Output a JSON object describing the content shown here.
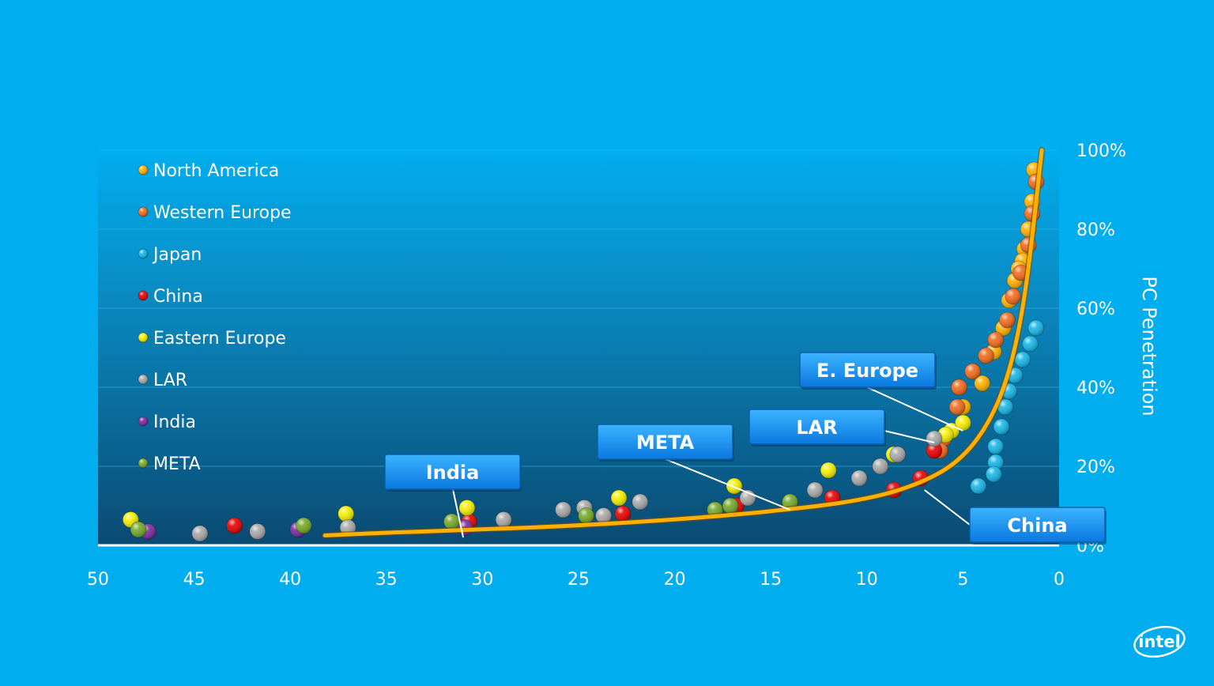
{
  "chart_data": {
    "type": "scatter",
    "title": "",
    "xlabel": "",
    "ylabel": "PC Penetration",
    "xlim": [
      50,
      0
    ],
    "ylim": [
      0,
      100
    ],
    "x_ticks": [
      "50",
      "45",
      "40",
      "35",
      "30",
      "25",
      "20",
      "15",
      "10",
      "5",
      "0"
    ],
    "y_ticks": [
      "0%",
      "20%",
      "40%",
      "60%",
      "80%",
      "100%"
    ],
    "legend_position": "top-left",
    "grid": true,
    "series": [
      {
        "name": "North America",
        "color": "#ffb000",
        "points": [
          [
            1.3,
            95
          ],
          [
            1.4,
            87
          ],
          [
            1.6,
            80
          ],
          [
            1.8,
            75
          ],
          [
            1.9,
            72
          ],
          [
            2.1,
            70
          ],
          [
            2.3,
            67
          ],
          [
            2.6,
            62
          ],
          [
            2.9,
            55
          ],
          [
            3.4,
            49
          ],
          [
            4.0,
            41
          ],
          [
            5.0,
            35
          ]
        ]
      },
      {
        "name": "Western Europe",
        "color": "#f26a1b",
        "points": [
          [
            1.2,
            92
          ],
          [
            1.4,
            84
          ],
          [
            1.6,
            76
          ],
          [
            2.0,
            69
          ],
          [
            2.4,
            63
          ],
          [
            2.7,
            57
          ],
          [
            3.3,
            52
          ],
          [
            3.8,
            48
          ],
          [
            4.5,
            44
          ],
          [
            5.2,
            40
          ],
          [
            5.3,
            35
          ],
          [
            6.0,
            27
          ],
          [
            6.2,
            24
          ]
        ]
      },
      {
        "name": "Japan",
        "color": "#17b6e8",
        "points": [
          [
            1.2,
            55
          ],
          [
            1.5,
            51
          ],
          [
            1.9,
            47
          ],
          [
            2.3,
            43
          ],
          [
            2.6,
            39
          ],
          [
            2.8,
            35
          ],
          [
            3.0,
            30
          ],
          [
            3.3,
            25
          ],
          [
            3.3,
            21
          ],
          [
            3.4,
            18
          ],
          [
            4.2,
            15
          ]
        ]
      },
      {
        "name": "China",
        "color": "#e80000",
        "points": [
          [
            42.9,
            5
          ],
          [
            30.7,
            6
          ],
          [
            22.7,
            8
          ],
          [
            16.8,
            10
          ],
          [
            11.8,
            12
          ],
          [
            8.6,
            14
          ],
          [
            7.2,
            17
          ],
          [
            6.5,
            24
          ]
        ]
      },
      {
        "name": "Eastern Europe",
        "color": "#f5f000",
        "points": [
          [
            48.3,
            6.5
          ],
          [
            37.1,
            8
          ],
          [
            30.8,
            9.5
          ],
          [
            22.9,
            12
          ],
          [
            16.9,
            15
          ],
          [
            12.0,
            19
          ],
          [
            8.6,
            23
          ],
          [
            5.6,
            29
          ],
          [
            5.9,
            28
          ],
          [
            5.0,
            31
          ]
        ]
      },
      {
        "name": "LAR",
        "color": "#a9a9a9",
        "points": [
          [
            44.7,
            3
          ],
          [
            41.7,
            3.5
          ],
          [
            37.0,
            4.5
          ],
          [
            28.9,
            6.5
          ],
          [
            25.8,
            9
          ],
          [
            24.7,
            9.5
          ],
          [
            23.7,
            7.5
          ],
          [
            21.8,
            11
          ],
          [
            16.2,
            12
          ],
          [
            12.7,
            14
          ],
          [
            10.4,
            17
          ],
          [
            9.3,
            20
          ],
          [
            8.4,
            23
          ],
          [
            6.5,
            27
          ]
        ]
      },
      {
        "name": "India",
        "color": "#7a2aa0",
        "points": [
          [
            47.4,
            3.5
          ],
          [
            39.6,
            4
          ],
          [
            30.9,
            4.5
          ]
        ]
      },
      {
        "name": "META",
        "color": "#75a928",
        "points": [
          [
            47.9,
            4
          ],
          [
            39.3,
            5
          ],
          [
            31.6,
            6
          ],
          [
            24.6,
            7.5
          ],
          [
            17.9,
            9
          ],
          [
            17.1,
            10
          ],
          [
            14.0,
            11
          ]
        ]
      }
    ],
    "trend_curve": {
      "name": "",
      "color": "#ffb000",
      "points": [
        [
          38.2,
          2.5
        ],
        [
          35,
          3.2
        ],
        [
          30,
          4
        ],
        [
          25,
          5
        ],
        [
          20,
          6.5
        ],
        [
          15,
          8.5
        ],
        [
          10,
          11.5
        ],
        [
          7,
          16
        ],
        [
          5,
          22
        ],
        [
          3.5,
          32
        ],
        [
          2.5,
          45
        ],
        [
          1.8,
          62
        ],
        [
          1.3,
          82
        ],
        [
          0.9,
          100
        ]
      ]
    },
    "callouts": [
      {
        "label": "India",
        "anchor": [
          31,
          2
        ]
      },
      {
        "label": "META",
        "anchor": [
          14,
          9
        ]
      },
      {
        "label": "LAR",
        "anchor": [
          6.5,
          26
        ]
      },
      {
        "label": "E. Europe",
        "anchor": [
          5,
          29
        ]
      },
      {
        "label": "China",
        "anchor": [
          7,
          14
        ]
      }
    ]
  },
  "branding": {
    "logo_text": "intel"
  }
}
